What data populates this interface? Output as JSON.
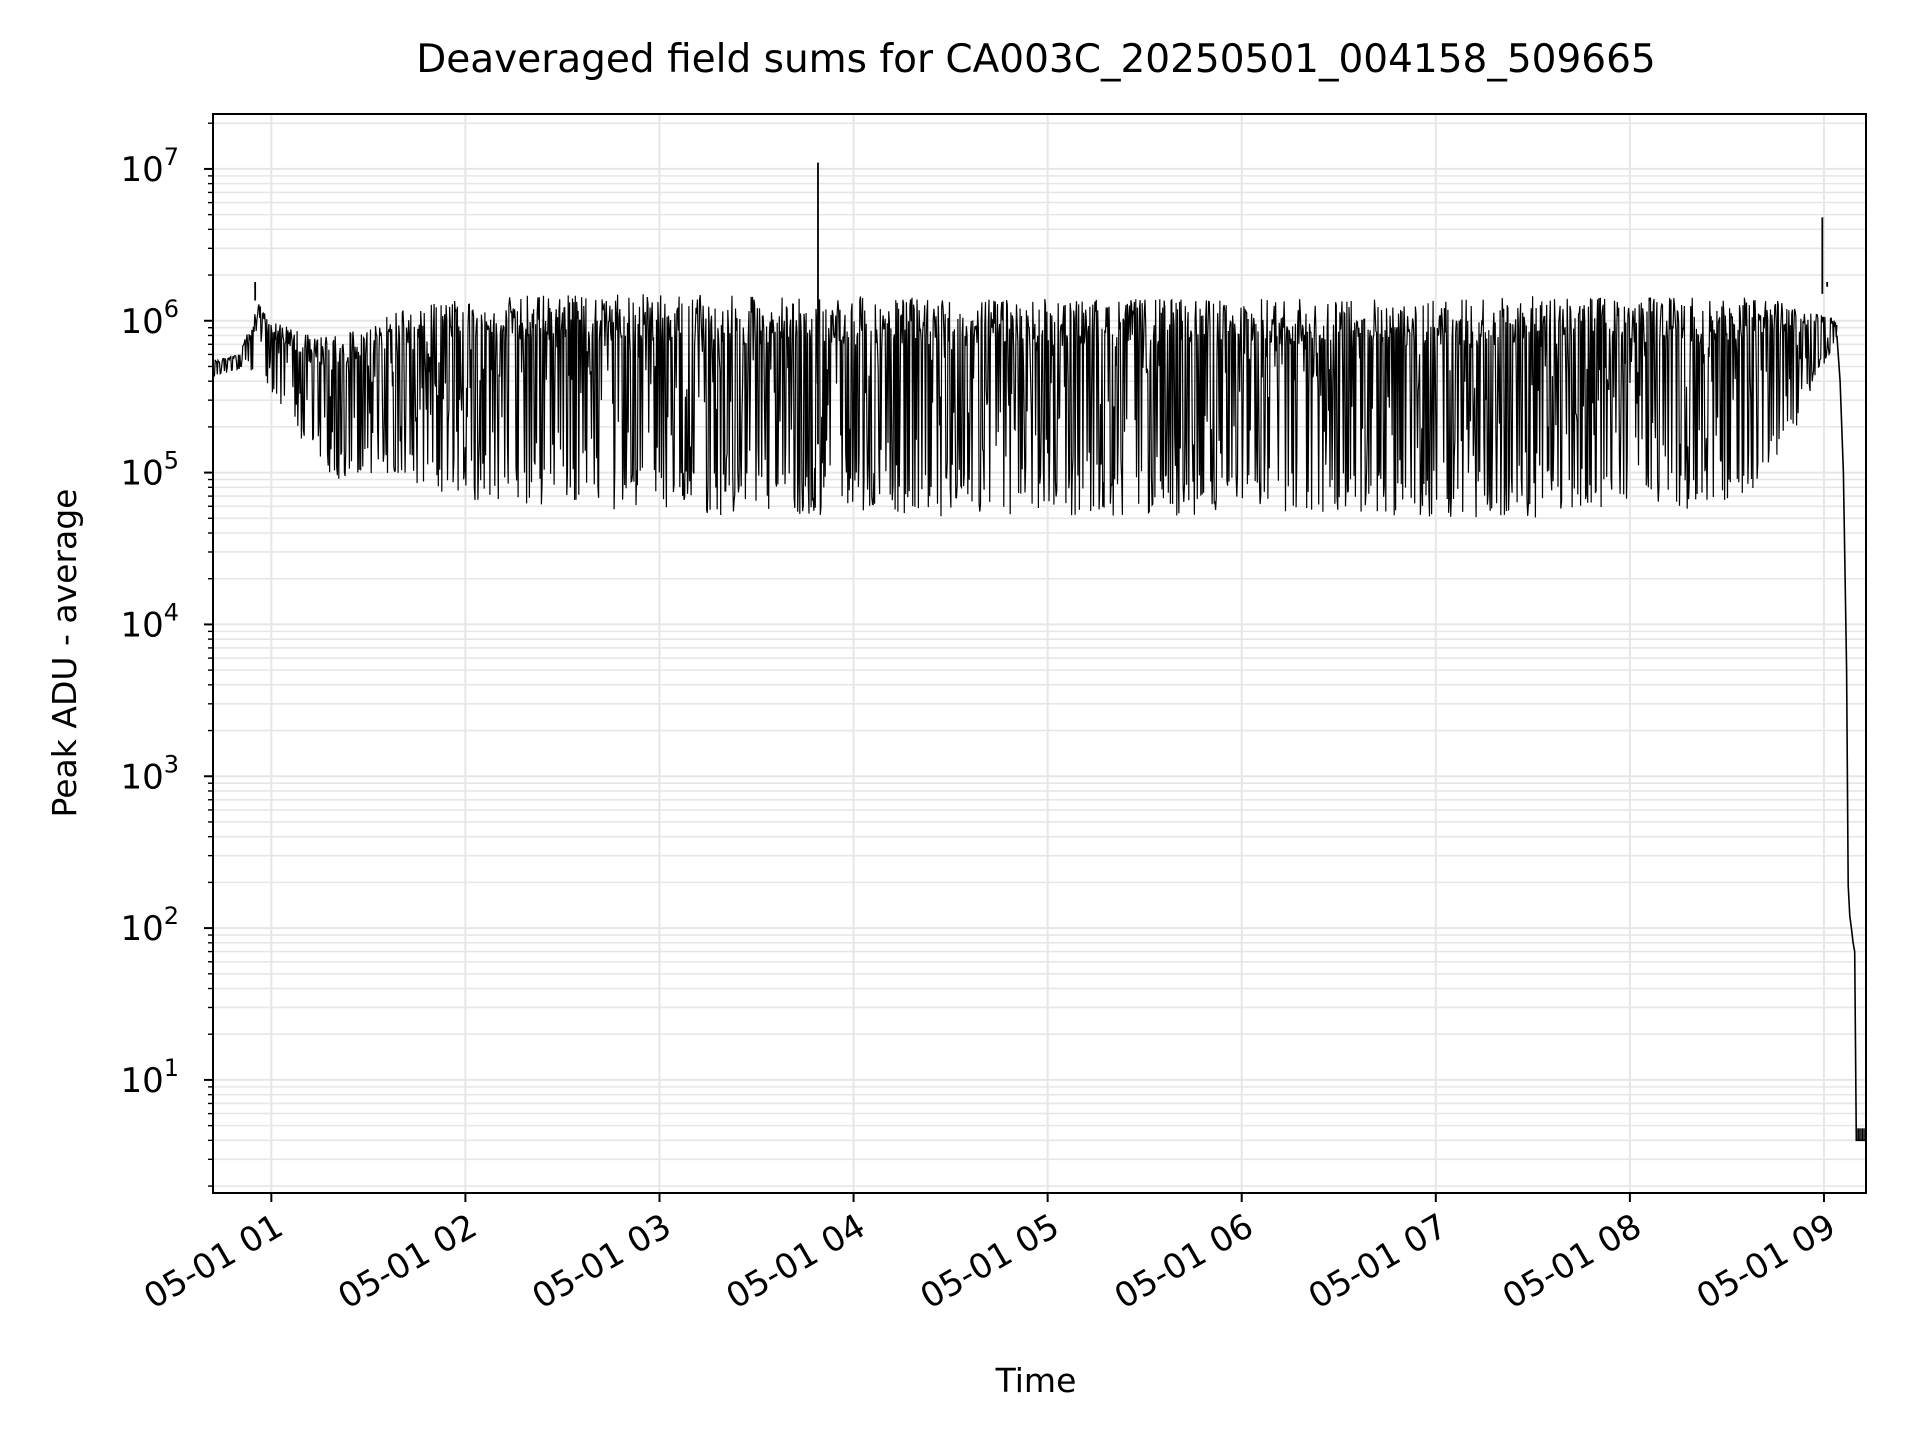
{
  "chart_data": {
    "type": "line",
    "title": "Deaveraged field sums for CA003C_20250501_004158_509665",
    "xlabel": "Time",
    "ylabel": "Peak ADU - average",
    "x_scale": "time",
    "y_scale": "log",
    "xlim": [
      "2025-05-01T00:41:58",
      "2025-05-01T09:13:00"
    ],
    "ylim": [
      1.8,
      23000000
    ],
    "grid": true,
    "x_ticks": [
      "2025-05-01T01:00:00",
      "2025-05-01T02:00:00",
      "2025-05-01T03:00:00",
      "2025-05-01T04:00:00",
      "2025-05-01T05:00:00",
      "2025-05-01T06:00:00",
      "2025-05-01T07:00:00",
      "2025-05-01T08:00:00",
      "2025-05-01T09:00:00"
    ],
    "x_tick_labels": [
      "05-01 01",
      "05-01 02",
      "05-01 03",
      "05-01 04",
      "05-01 05",
      "05-01 06",
      "05-01 07",
      "05-01 08",
      "05-01 09"
    ],
    "y_tick_values": [
      10,
      100,
      1000,
      10000,
      100000,
      1000000,
      10000000
    ],
    "y_tick_labels": [
      {
        "base": "10",
        "exp": "1"
      },
      {
        "base": "10",
        "exp": "2"
      },
      {
        "base": "10",
        "exp": "3"
      },
      {
        "base": "10",
        "exp": "4"
      },
      {
        "base": "10",
        "exp": "5"
      },
      {
        "base": "10",
        "exp": "6"
      },
      {
        "base": "10",
        "exp": "7"
      }
    ],
    "line_color": "#000000",
    "series": [
      {
        "envelope": {
          "x": [
            "2025-05-01T00:42:00",
            "2025-05-01T00:50:00",
            "2025-05-01T00:56:00",
            "2025-05-01T01:00:00",
            "2025-05-01T01:06:00",
            "2025-05-01T01:12:00",
            "2025-05-01T01:20:00",
            "2025-05-01T01:30:00",
            "2025-05-01T01:40:00",
            "2025-05-01T02:00:00",
            "2025-05-01T02:30:00",
            "2025-05-01T03:00:00",
            "2025-05-01T03:30:00",
            "2025-05-01T04:00:00",
            "2025-05-01T04:30:00",
            "2025-05-01T05:00:00",
            "2025-05-01T05:30:00",
            "2025-05-01T06:00:00",
            "2025-05-01T06:30:00",
            "2025-05-01T07:00:00",
            "2025-05-01T07:30:00",
            "2025-05-01T08:00:00",
            "2025-05-01T08:20:00",
            "2025-05-01T08:40:00",
            "2025-05-01T08:52:00",
            "2025-05-01T08:58:00",
            "2025-05-01T09:02:00",
            "2025-05-01T09:04:00"
          ],
          "high": [
            550000,
            600000,
            1300000,
            1000000,
            950000,
            800000,
            800000,
            950000,
            1200000,
            1400000,
            1500000,
            1500000,
            1450000,
            1450000,
            1400000,
            1400000,
            1400000,
            1400000,
            1400000,
            1400000,
            1450000,
            1450000,
            1450000,
            1500000,
            1200000,
            1100000,
            1100000,
            1000000
          ],
          "low": [
            420000,
            470000,
            450000,
            300000,
            200000,
            120000,
            90000,
            100000,
            80000,
            65000,
            60000,
            55000,
            50000,
            52000,
            50000,
            52000,
            50000,
            55000,
            55000,
            50000,
            50000,
            60000,
            55000,
            80000,
            200000,
            450000,
            600000,
            700000
          ]
        },
        "spikes": [
          {
            "x": "2025-05-01T03:49:00",
            "y": 11000000
          },
          {
            "x": "2025-05-01T08:59:30",
            "y": 4800000
          },
          {
            "x": "2025-05-01T00:55:00",
            "y": 1800000
          },
          {
            "x": "2025-05-01T09:01:00",
            "y": 1800000
          }
        ],
        "tail": {
          "x": [
            "2025-05-01T09:04:00",
            "2025-05-01T09:05:00",
            "2025-05-01T09:06:00",
            "2025-05-01T09:07:00",
            "2025-05-01T09:07:30",
            "2025-05-01T09:08:00",
            "2025-05-01T09:08:30",
            "2025-05-01T09:09:00",
            "2025-05-01T09:09:30",
            "2025-05-01T09:10:00",
            "2025-05-01T09:13:00"
          ],
          "y": [
            800000,
            400000,
            100000,
            5000,
            190,
            120,
            100,
            80,
            70,
            4,
            4
          ]
        }
      }
    ]
  }
}
